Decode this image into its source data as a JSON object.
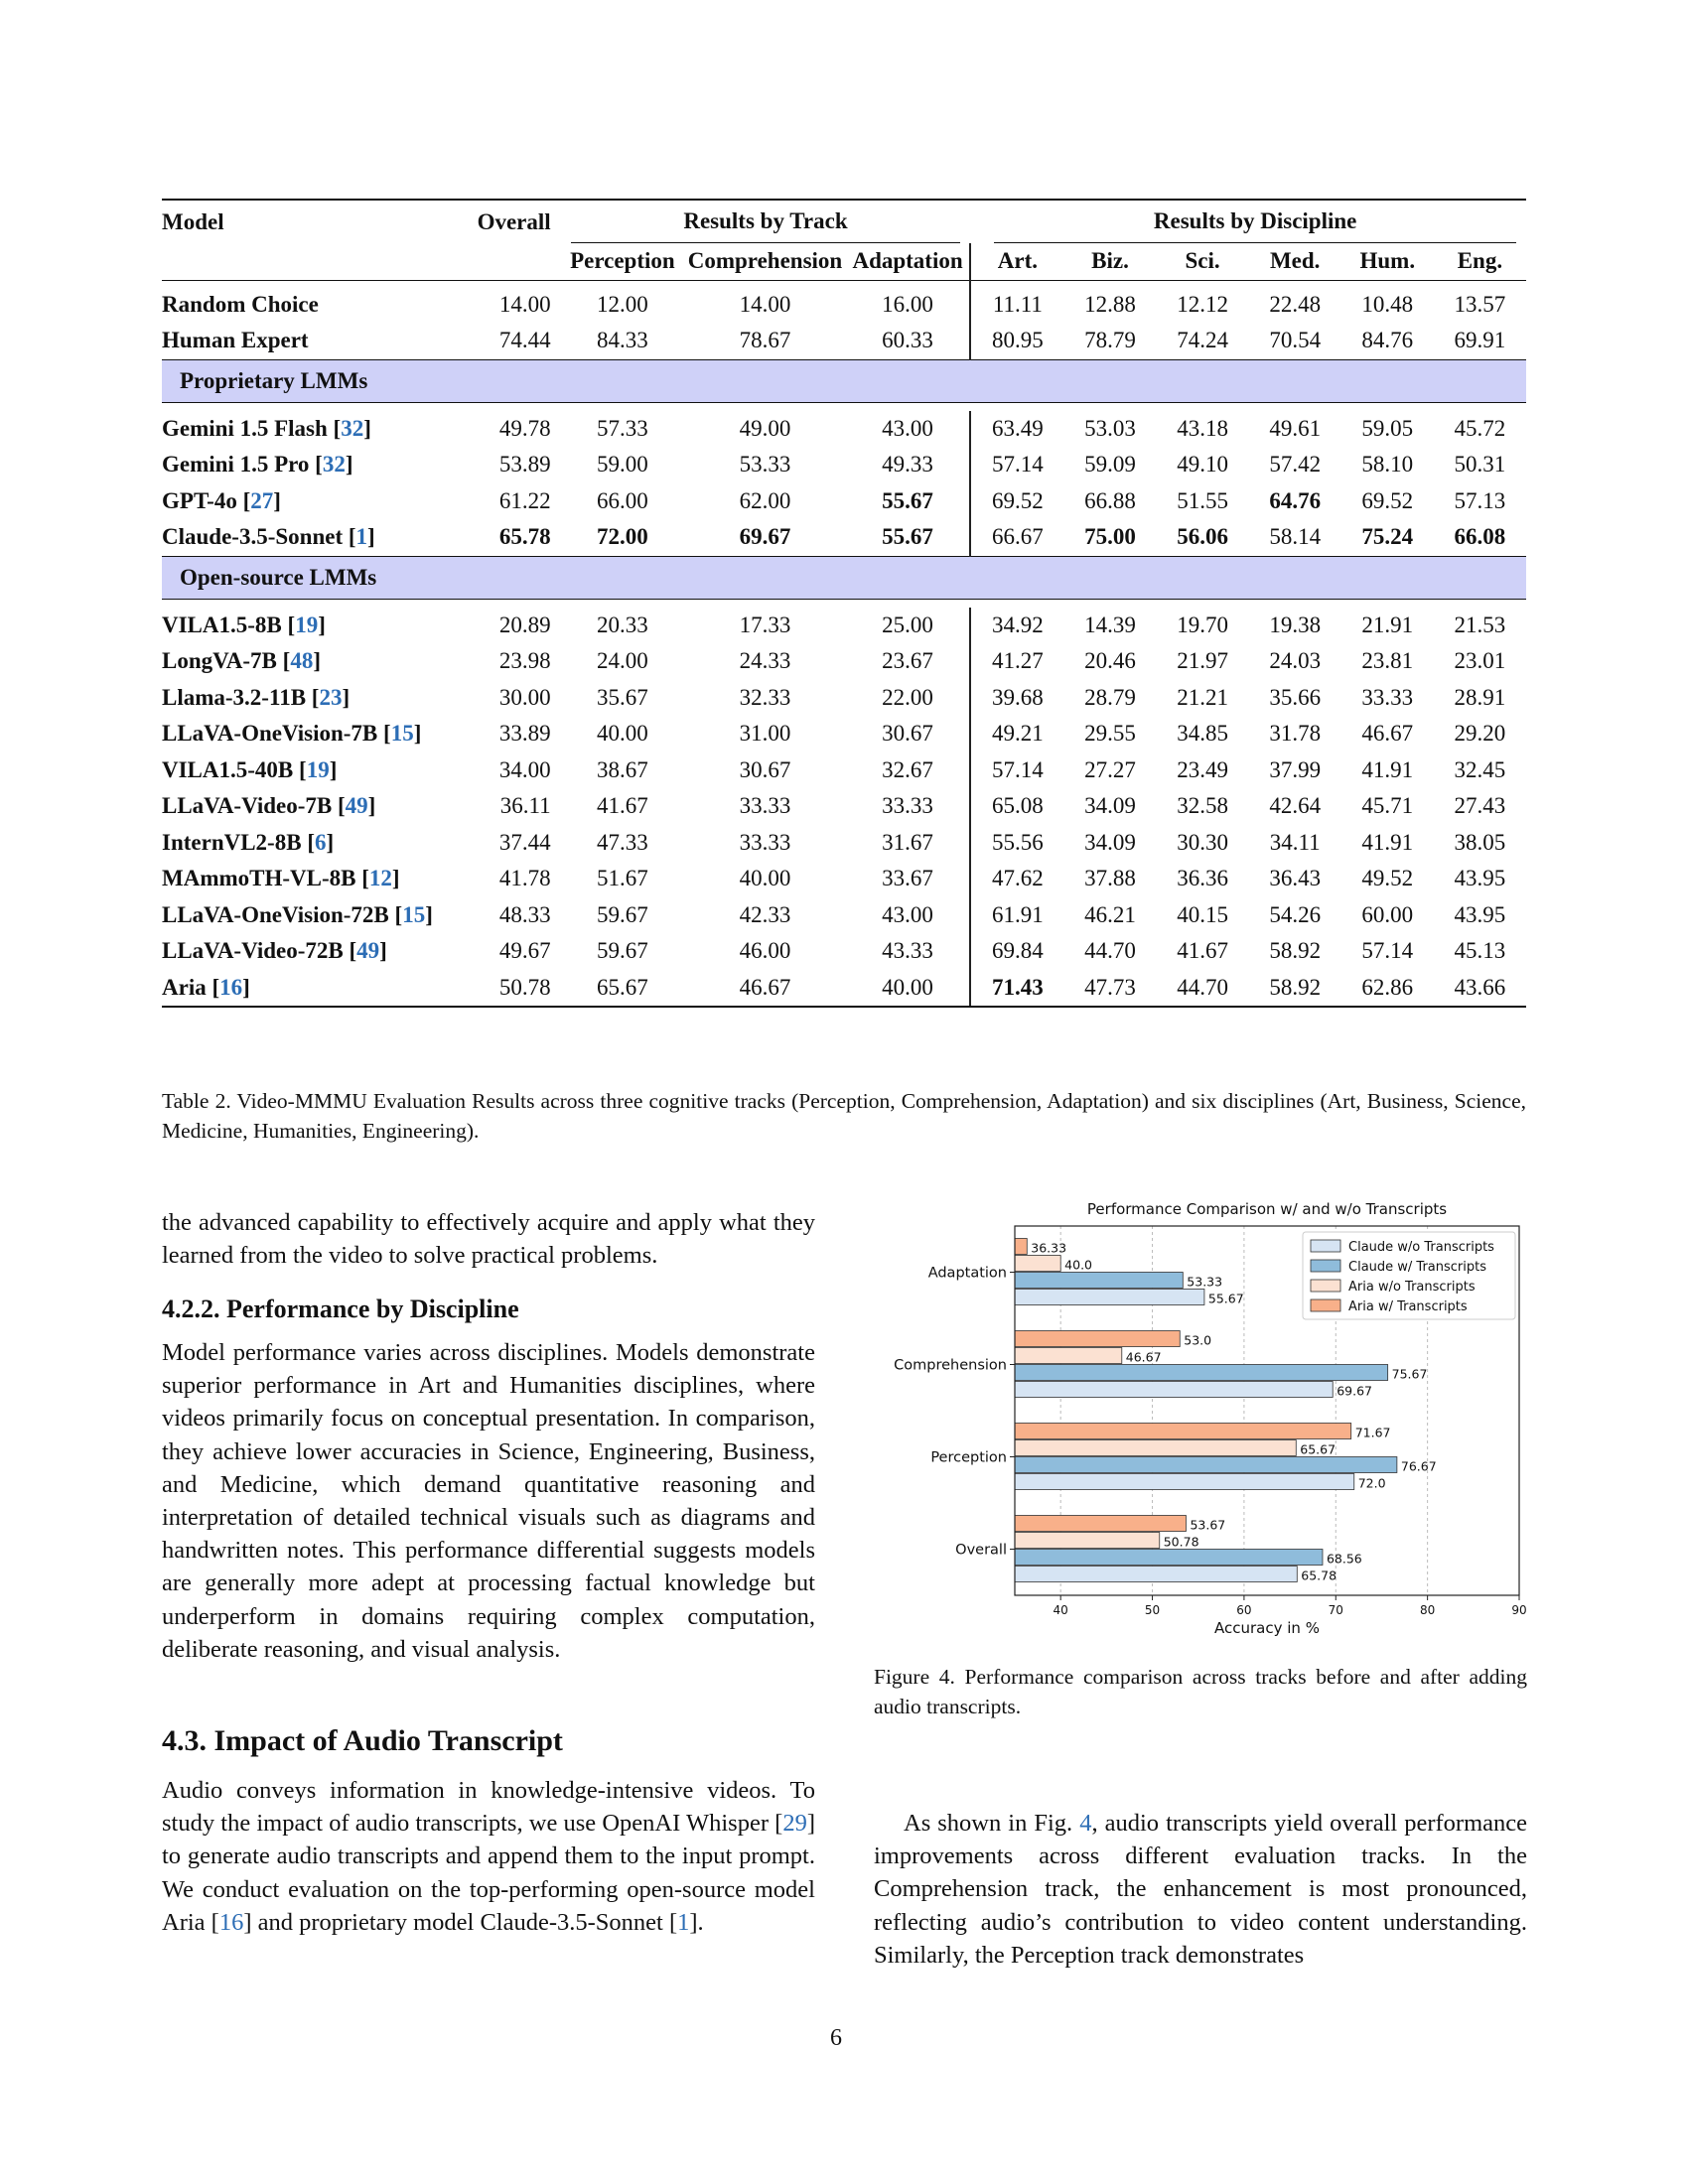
{
  "table": {
    "header": {
      "model": "Model",
      "overall": "Overall",
      "by_track": "Results by Track",
      "by_discipline": "Results by Discipline",
      "tracks": [
        "Perception",
        "Comprehension",
        "Adaptation"
      ],
      "disciplines": [
        "Art.",
        "Biz.",
        "Sci.",
        "Med.",
        "Hum.",
        "Eng."
      ]
    },
    "baseline_rows": [
      {
        "name": "Random Choice",
        "cite": "",
        "values": [
          "14.00",
          "12.00",
          "14.00",
          "16.00",
          "11.11",
          "12.88",
          "12.12",
          "22.48",
          "10.48",
          "13.57"
        ],
        "bold": []
      },
      {
        "name": "Human Expert",
        "cite": "",
        "values": [
          "74.44",
          "84.33",
          "78.67",
          "60.33",
          "80.95",
          "78.79",
          "74.24",
          "70.54",
          "84.76",
          "69.91"
        ],
        "bold": []
      }
    ],
    "proprietary_label": "Proprietary LMMs",
    "proprietary_rows": [
      {
        "name": "Gemini 1.5 Flash",
        "cite": "32",
        "values": [
          "49.78",
          "57.33",
          "49.00",
          "43.00",
          "63.49",
          "53.03",
          "43.18",
          "49.61",
          "59.05",
          "45.72"
        ],
        "bold": []
      },
      {
        "name": "Gemini 1.5 Pro",
        "cite": "32",
        "values": [
          "53.89",
          "59.00",
          "53.33",
          "49.33",
          "57.14",
          "59.09",
          "49.10",
          "57.42",
          "58.10",
          "50.31"
        ],
        "bold": []
      },
      {
        "name": "GPT-4o",
        "cite": "27",
        "values": [
          "61.22",
          "66.00",
          "62.00",
          "55.67",
          "69.52",
          "66.88",
          "51.55",
          "64.76",
          "69.52",
          "57.13"
        ],
        "bold": [
          3,
          7
        ]
      },
      {
        "name": "Claude-3.5-Sonnet",
        "cite": "1",
        "values": [
          "65.78",
          "72.00",
          "69.67",
          "55.67",
          "66.67",
          "75.00",
          "56.06",
          "58.14",
          "75.24",
          "66.08"
        ],
        "bold": [
          0,
          1,
          2,
          3,
          5,
          6,
          8,
          9
        ]
      }
    ],
    "opensource_label": "Open-source LMMs",
    "opensource_rows": [
      {
        "name": "VILA1.5-8B",
        "cite": "19",
        "values": [
          "20.89",
          "20.33",
          "17.33",
          "25.00",
          "34.92",
          "14.39",
          "19.70",
          "19.38",
          "21.91",
          "21.53"
        ],
        "bold": []
      },
      {
        "name": "LongVA-7B",
        "cite": "48",
        "values": [
          "23.98",
          "24.00",
          "24.33",
          "23.67",
          "41.27",
          "20.46",
          "21.97",
          "24.03",
          "23.81",
          "23.01"
        ],
        "bold": []
      },
      {
        "name": "Llama-3.2-11B",
        "cite": "23",
        "values": [
          "30.00",
          "35.67",
          "32.33",
          "22.00",
          "39.68",
          "28.79",
          "21.21",
          "35.66",
          "33.33",
          "28.91"
        ],
        "bold": []
      },
      {
        "name": "LLaVA-OneVision-7B",
        "cite": "15",
        "values": [
          "33.89",
          "40.00",
          "31.00",
          "30.67",
          "49.21",
          "29.55",
          "34.85",
          "31.78",
          "46.67",
          "29.20"
        ],
        "bold": []
      },
      {
        "name": "VILA1.5-40B",
        "cite": "19",
        "values": [
          "34.00",
          "38.67",
          "30.67",
          "32.67",
          "57.14",
          "27.27",
          "23.49",
          "37.99",
          "41.91",
          "32.45"
        ],
        "bold": []
      },
      {
        "name": "LLaVA-Video-7B",
        "cite": "49",
        "values": [
          "36.11",
          "41.67",
          "33.33",
          "33.33",
          "65.08",
          "34.09",
          "32.58",
          "42.64",
          "45.71",
          "27.43"
        ],
        "bold": []
      },
      {
        "name": "InternVL2-8B",
        "cite": "6",
        "values": [
          "37.44",
          "47.33",
          "33.33",
          "31.67",
          "55.56",
          "34.09",
          "30.30",
          "34.11",
          "41.91",
          "38.05"
        ],
        "bold": []
      },
      {
        "name": "MAmmoTH-VL-8B",
        "cite": "12",
        "values": [
          "41.78",
          "51.67",
          "40.00",
          "33.67",
          "47.62",
          "37.88",
          "36.36",
          "36.43",
          "49.52",
          "43.95"
        ],
        "bold": []
      },
      {
        "name": "LLaVA-OneVision-72B",
        "cite": "15",
        "values": [
          "48.33",
          "59.67",
          "42.33",
          "43.00",
          "61.91",
          "46.21",
          "40.15",
          "54.26",
          "60.00",
          "43.95"
        ],
        "bold": []
      },
      {
        "name": "LLaVA-Video-72B",
        "cite": "49",
        "values": [
          "49.67",
          "59.67",
          "46.00",
          "43.33",
          "69.84",
          "44.70",
          "41.67",
          "58.92",
          "57.14",
          "45.13"
        ],
        "bold": []
      },
      {
        "name": "Aria",
        "cite": "16",
        "values": [
          "50.78",
          "65.67",
          "46.67",
          "40.00",
          "71.43",
          "47.73",
          "44.70",
          "58.92",
          "62.86",
          "43.66"
        ],
        "bold": [
          4
        ]
      }
    ]
  },
  "table_caption": "Table 2. Video-MMMU Evaluation Results across three cognitive tracks (Perception, Comprehension, Adaptation) and six disciplines (Art, Business, Science, Medicine, Humanities, Engineering).",
  "left_column": {
    "para1": "the advanced capability to effectively acquire and apply what they learned from the video to solve practical problems.",
    "heading_422": "4.2.2. Performance by Discipline",
    "para2": "Model performance varies across disciplines.  Models demonstrate superior performance in Art and Humanities disciplines, where videos primarily focus on conceptual presentation. In comparison, they achieve lower accuracies in Science, Engineering, Business, and Medicine, which demand quantitative reasoning and interpretation of detailed technical visuals such as diagrams and handwritten notes. This performance differential suggests models are generally more adept at processing factual knowledge but underperform in domains requiring complex computation, deliberate reasoning, and visual analysis.",
    "heading_43": "4.3. Impact of Audio Transcript",
    "para3_a": "Audio conveys information in knowledge-intensive videos. To study the impact of audio transcripts, we use OpenAI Whisper [",
    "para3_cite1": "29",
    "para3_b": "] to generate audio transcripts and append them to the input prompt.  We conduct evaluation on the top-performing open-source model Aria [",
    "para3_cite2": "16",
    "para3_c": "] and proprietary model Claude-3.5-Sonnet [",
    "para3_cite3": "1",
    "para3_d": "]."
  },
  "right_column": {
    "figure_caption": "Figure 4. Performance comparison across tracks before and after adding audio transcripts.",
    "para_a": "As shown in Fig. ",
    "para_cite": "4",
    "para_b": ", audio transcripts yield overall performance improvements across different evaluation tracks. In the Comprehension track, the enhancement is most pronounced, reflecting audio’s contribution to video content understanding. Similarly, the Perception track demonstrates"
  },
  "page_number": "6",
  "chart_data": {
    "type": "bar",
    "orientation": "horizontal",
    "title": "Performance Comparison w/ and w/o Transcripts",
    "xlabel": "Accuracy in %",
    "ylabel": "",
    "xlim": [
      35,
      90
    ],
    "xticks": [
      "40",
      "50",
      "60",
      "70",
      "80",
      "90"
    ],
    "categories": [
      "Overall",
      "Perception",
      "Comprehension",
      "Adaptation"
    ],
    "series": [
      {
        "name": "Claude w/o Transcripts",
        "color": "#d6e4f3",
        "values": [
          65.78,
          72.0,
          69.67,
          55.67
        ],
        "labels": [
          "65.78",
          "72.0",
          "69.67",
          "55.67"
        ]
      },
      {
        "name": "Claude w/ Transcripts",
        "color": "#8fbcdb",
        "values": [
          68.56,
          76.67,
          75.67,
          53.33
        ],
        "labels": [
          "68.56",
          "76.67",
          "75.67",
          "53.33"
        ]
      },
      {
        "name": "Aria w/o Transcripts",
        "color": "#fbe1d2",
        "values": [
          50.78,
          65.67,
          46.67,
          40.0
        ],
        "labels": [
          "50.78",
          "65.67",
          "46.67",
          "40.0"
        ]
      },
      {
        "name": "Aria w/ Transcripts",
        "color": "#f8b08a",
        "values": [
          53.67,
          71.67,
          53.0,
          36.33
        ],
        "labels": [
          "53.67",
          "71.67",
          "53.0",
          "36.33"
        ]
      }
    ],
    "grid": true,
    "legend_position": "top-right"
  }
}
